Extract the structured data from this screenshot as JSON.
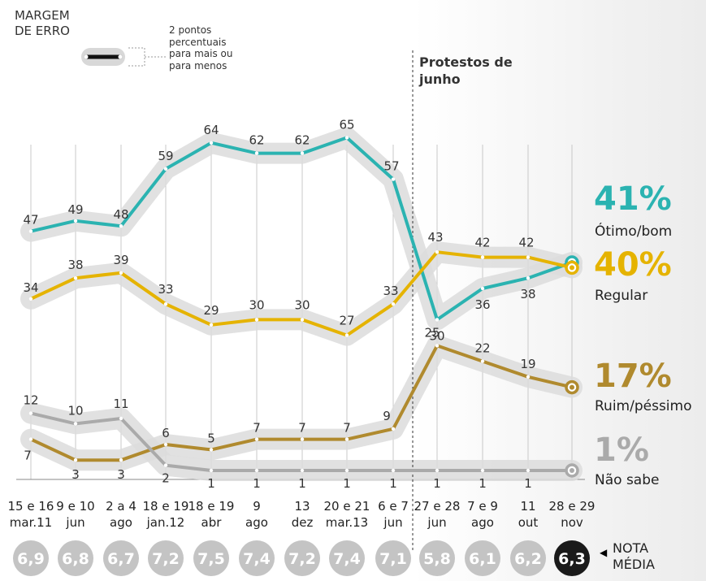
{
  "legend": {
    "title_line1": "MARGEM",
    "title_line2": "DE ERRO",
    "desc_lines": [
      "2 pontos",
      "percentuais",
      "para mais ou",
      "para menos"
    ]
  },
  "annotation": {
    "line1": "Protestos de",
    "line2": "junho"
  },
  "nota": {
    "line1": "NOTA",
    "line2": "MÉDIA"
  },
  "chart_data": {
    "type": "line",
    "title": "",
    "categories": [
      [
        "15 e 16",
        "mar.11"
      ],
      [
        "9 e 10",
        "jun"
      ],
      [
        "2 a 4",
        "ago"
      ],
      [
        "18 e 19",
        "jan.12"
      ],
      [
        "18 e 19",
        "abr"
      ],
      [
        "9",
        "ago"
      ],
      [
        "13",
        "dez"
      ],
      [
        "20 e 21",
        "mar.13"
      ],
      [
        "6 e 7",
        "jun"
      ],
      [
        "27 e 28",
        "jun"
      ],
      [
        "7 e 9",
        "ago"
      ],
      [
        "11",
        "out"
      ],
      [
        "28 e 29",
        "nov"
      ]
    ],
    "series": [
      {
        "name": "Ótimo/bom",
        "color": "#2bb3b1",
        "values": [
          47,
          49,
          48,
          59,
          64,
          62,
          62,
          65,
          57,
          30,
          36,
          38,
          41
        ],
        "final_label": "41%"
      },
      {
        "name": "Regular",
        "color": "#e5b300",
        "values": [
          34,
          38,
          39,
          33,
          29,
          30,
          30,
          27,
          33,
          43,
          42,
          42,
          40
        ],
        "final_label": "40%"
      },
      {
        "name": "Ruim/péssimo",
        "color": "#b08a2e",
        "values": [
          7,
          3,
          3,
          6,
          5,
          7,
          7,
          7,
          9,
          25,
          22,
          19,
          17
        ],
        "final_label": "17%"
      },
      {
        "name": "Não sabe",
        "color": "#aaaaaa",
        "values": [
          12,
          10,
          11,
          2,
          1,
          1,
          1,
          1,
          1,
          1,
          1,
          1,
          1
        ],
        "final_label": "1%"
      }
    ],
    "nota_media": [
      "6,9",
      "6,8",
      "6,7",
      "7,2",
      "7,5",
      "7,4",
      "7,2",
      "7,4",
      "7,1",
      "5,8",
      "6,1",
      "6,2",
      "6,3"
    ],
    "margin_of_error": "2 pontos percentuais para mais ou para menos",
    "event_marker": "Protestos de junho"
  }
}
